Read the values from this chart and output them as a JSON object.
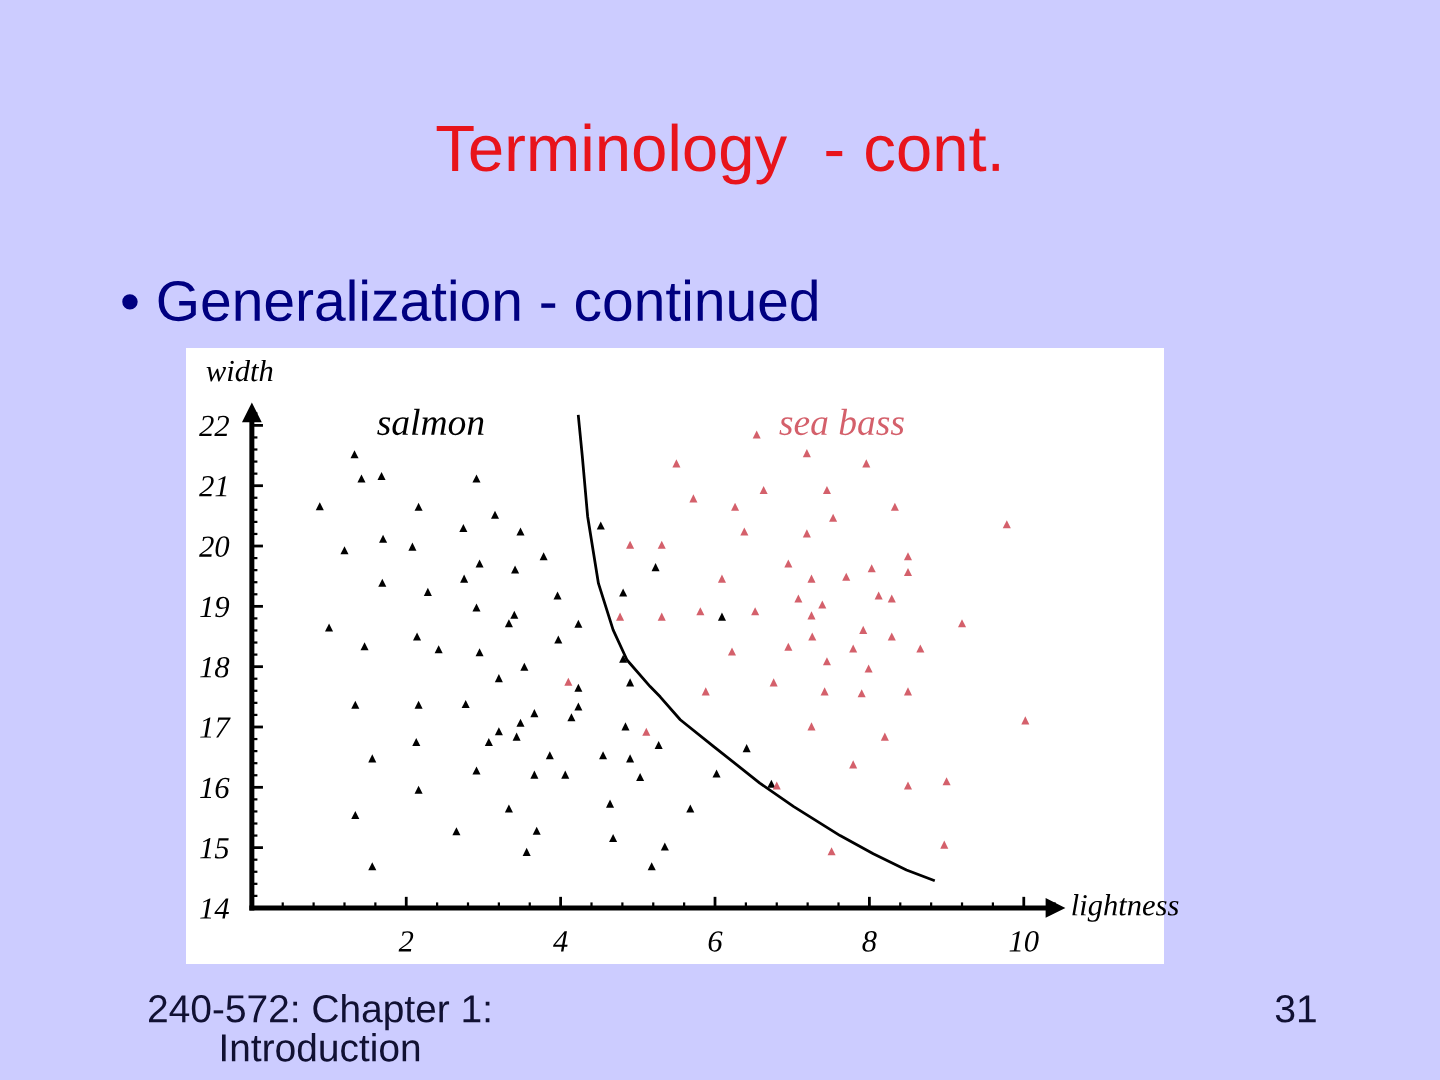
{
  "chart_data": {
    "type": "scatter",
    "title": "Terminology  - cont.",
    "subtitle": "• Generalization - continued",
    "xlabel": "lightness",
    "ylabel": "width",
    "annotations": [
      "240-572: Chapter 1:\nIntroduction",
      "31"
    ],
    "xlim": [
      0,
      10.4
    ],
    "ylim": [
      14,
      22.2
    ],
    "xticks": [
      2,
      4,
      6,
      8,
      10
    ],
    "yticks": [
      14,
      15,
      16,
      17,
      18,
      19,
      20,
      21,
      22
    ],
    "series": [
      {
        "name": "salmon",
        "color": "#000000",
        "marker": "triangle",
        "x": [
          1.33,
          1.42,
          1.68,
          2.91,
          0.88,
          2.16,
          3.15,
          2.74,
          3.48,
          4.52,
          1.2,
          1.7,
          2.08,
          3.78,
          2.95,
          3.41,
          2.75,
          1.69,
          2.28,
          3.96,
          4.81,
          2.91,
          5.23,
          3.4,
          3.33,
          1.0,
          4.23,
          3.97,
          2.14,
          1.46,
          2.42,
          2.95,
          4.81,
          3.2,
          3.53,
          4.9,
          4.23,
          1.34,
          2.16,
          2.77,
          4.23,
          3.66,
          4.14,
          3.48,
          3.2,
          4.84,
          3.43,
          3.07,
          2.13,
          5.27,
          3.86,
          4.55,
          4.9,
          1.56,
          2.91,
          3.66,
          4.06,
          5.03,
          2.16,
          4.64,
          3.33,
          1.34,
          2.65,
          3.69,
          4.68,
          5.35,
          3.56,
          1.56,
          5.18,
          5.68,
          6.02,
          6.41,
          6.73,
          6.09
        ],
        "values": [
          21.52,
          21.12,
          21.16,
          21.12,
          20.66,
          20.65,
          20.52,
          20.3,
          20.24,
          20.34,
          19.93,
          20.12,
          19.99,
          19.83,
          19.71,
          19.61,
          19.46,
          19.39,
          19.24,
          19.18,
          19.23,
          18.98,
          19.65,
          18.86,
          18.72,
          18.65,
          18.71,
          18.45,
          18.5,
          18.34,
          18.29,
          18.24,
          18.13,
          17.81,
          18.0,
          17.74,
          17.65,
          17.37,
          17.37,
          17.38,
          17.34,
          17.23,
          17.16,
          17.07,
          16.93,
          17.01,
          16.84,
          16.75,
          16.75,
          16.7,
          16.53,
          16.53,
          16.48,
          16.48,
          16.28,
          16.21,
          16.21,
          16.17,
          15.96,
          15.73,
          15.65,
          15.54,
          15.27,
          15.28,
          15.16,
          15.02,
          14.93,
          14.69,
          14.69,
          15.65,
          16.23,
          16.65,
          16.06,
          18.83
        ]
      },
      {
        "name": "sea bass",
        "color": "#d4606b",
        "marker": "triangle",
        "x": [
          5.5,
          4.9,
          5.31,
          4.77,
          5.31,
          4.1,
          5.11,
          6.54,
          7.19,
          7.96,
          5.72,
          6.63,
          7.45,
          6.26,
          8.33,
          7.53,
          6.38,
          7.19,
          9.78,
          8.5,
          8.03,
          8.5,
          6.95,
          6.09,
          7.25,
          7.7,
          7.08,
          7.39,
          8.12,
          8.29,
          5.81,
          6.52,
          7.25,
          9.2,
          7.92,
          7.26,
          8.29,
          6.95,
          7.79,
          8.66,
          6.22,
          7.45,
          7.99,
          5.88,
          6.76,
          7.42,
          7.9,
          8.5,
          10.02,
          7.25,
          8.2,
          7.79,
          9.0,
          8.5,
          6.8,
          8.97,
          7.51
        ],
        "values": [
          21.37,
          20.02,
          20.02,
          18.83,
          18.83,
          17.75,
          16.92,
          21.85,
          21.54,
          21.37,
          20.79,
          20.93,
          20.93,
          20.65,
          20.65,
          20.47,
          20.24,
          20.21,
          20.36,
          19.83,
          19.63,
          19.57,
          19.71,
          19.46,
          19.46,
          19.49,
          19.13,
          19.03,
          19.18,
          19.13,
          18.92,
          18.92,
          18.85,
          18.72,
          18.61,
          18.5,
          18.5,
          18.33,
          18.3,
          18.3,
          18.25,
          18.09,
          17.97,
          17.59,
          17.74,
          17.59,
          17.56,
          17.59,
          17.11,
          17.01,
          16.84,
          16.38,
          16.1,
          16.03,
          16.03,
          15.05,
          14.94
        ]
      },
      {
        "type": "line",
        "color": "#000000",
        "x": [
          4.23,
          4.28,
          4.35,
          4.49,
          4.68,
          4.86,
          5.16,
          5.29,
          5.55,
          5.98,
          6.58,
          7.02,
          7.62,
          8.05,
          8.48,
          8.83
        ],
        "values": [
          22.15,
          21.5,
          20.49,
          19.38,
          18.61,
          18.11,
          17.67,
          17.5,
          17.12,
          16.68,
          16.07,
          15.68,
          15.2,
          14.9,
          14.63,
          14.46
        ]
      }
    ]
  }
}
